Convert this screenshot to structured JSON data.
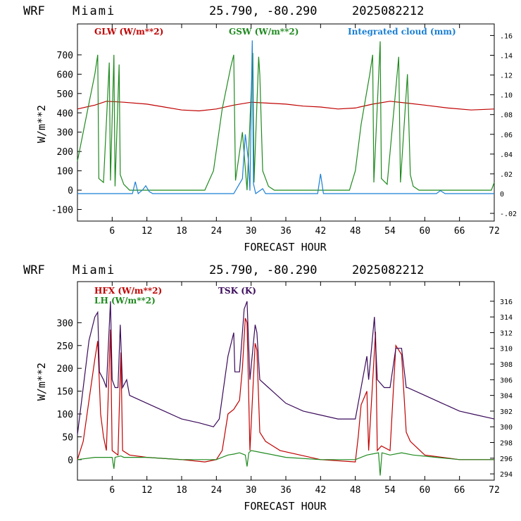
{
  "charts": [
    {
      "header": {
        "model": "WRF",
        "site": "Miami",
        "coords": "25.790, -80.290",
        "run": "2025082212"
      },
      "xlabel": "FORECAST HOUR",
      "ylabel": "W/m**2",
      "x_ticks": [
        "6",
        "12",
        "18",
        "24",
        "30",
        "36",
        "42",
        "48",
        "54",
        "60",
        "66",
        "72"
      ],
      "y_ticks": [
        "-100",
        "0",
        "100",
        "200",
        "300",
        "400",
        "500",
        "600",
        "700"
      ],
      "y2_ticks": [
        "-.02",
        "0",
        ".02",
        ".04",
        ".06",
        ".08",
        ".10",
        ".12",
        ".14",
        ".16"
      ],
      "legend": [
        {
          "label": "GLW (W/m**2)",
          "color": "#c00000"
        },
        {
          "label": "GSW (W/m**2)",
          "color": "#1f8a1f"
        },
        {
          "label": "Integrated cloud (mm)",
          "color": "#1a7fd4"
        }
      ]
    },
    {
      "header": {
        "model": "WRF",
        "site": "Miami",
        "coords": "25.790, -80.290",
        "run": "2025082212"
      },
      "xlabel": "FORECAST HOUR",
      "ylabel": "W/m**2",
      "x_ticks": [
        "6",
        "12",
        "18",
        "24",
        "30",
        "36",
        "42",
        "48",
        "54",
        "60",
        "66",
        "72"
      ],
      "y_ticks": [
        "0",
        "50",
        "100",
        "150",
        "200",
        "250",
        "300"
      ],
      "y2_ticks": [
        "294",
        "296",
        "298",
        "300",
        "302",
        "304",
        "306",
        "308",
        "310",
        "312",
        "314",
        "316"
      ],
      "legend": [
        {
          "label": "HFX (W/m**2)",
          "color": "#c00000"
        },
        {
          "label": "LH  (W/m**2)",
          "color": "#1f8a1f"
        },
        {
          "label": "TSK (K)",
          "color": "#3a0a5a"
        }
      ]
    }
  ],
  "chart_data": [
    {
      "type": "line",
      "xlim": [
        0,
        72
      ],
      "ylim": [
        -160,
        860
      ],
      "y2lim": [
        -0.0278,
        0.1717
      ],
      "series": [
        {
          "name": "GLW (W/m**2)",
          "color": "#c00000",
          "axis": "left",
          "points": [
            [
              0,
              420
            ],
            [
              3,
              440
            ],
            [
              5,
              460
            ],
            [
              8,
              455
            ],
            [
              12,
              445
            ],
            [
              15,
              430
            ],
            [
              18,
              415
            ],
            [
              21,
              410
            ],
            [
              24,
              420
            ],
            [
              27,
              440
            ],
            [
              30,
              455
            ],
            [
              33,
              450
            ],
            [
              36,
              445
            ],
            [
              39,
              435
            ],
            [
              42,
              430
            ],
            [
              45,
              420
            ],
            [
              48,
              425
            ],
            [
              51,
              445
            ],
            [
              54,
              460
            ],
            [
              57,
              450
            ],
            [
              60,
              440
            ],
            [
              64,
              425
            ],
            [
              68,
              415
            ],
            [
              72,
              420
            ]
          ]
        },
        {
          "name": "GSW (W/m**2)",
          "color": "#1f8a1f",
          "axis": "left",
          "points": [
            [
              0,
              150
            ],
            [
              1,
              300
            ],
            [
              2,
              450
            ],
            [
              3,
              600
            ],
            [
              3.5,
              700
            ],
            [
              3.7,
              60
            ],
            [
              4.5,
              40
            ],
            [
              5.5,
              660
            ],
            [
              5.7,
              50
            ],
            [
              6.3,
              700
            ],
            [
              6.5,
              20
            ],
            [
              7.2,
              650
            ],
            [
              7.4,
              80
            ],
            [
              8,
              30
            ],
            [
              9,
              0
            ],
            [
              22,
              0
            ],
            [
              23.5,
              100
            ],
            [
              25,
              420
            ],
            [
              26.5,
              640
            ],
            [
              27,
              700
            ],
            [
              27.3,
              50
            ],
            [
              28.5,
              300
            ],
            [
              29.3,
              0
            ],
            [
              30.3,
              710
            ],
            [
              30.5,
              40
            ],
            [
              31.3,
              690
            ],
            [
              31.5,
              600
            ],
            [
              32,
              100
            ],
            [
              33,
              20
            ],
            [
              34,
              0
            ],
            [
              47,
              0
            ],
            [
              48,
              100
            ],
            [
              49,
              340
            ],
            [
              50.5,
              600
            ],
            [
              51,
              700
            ],
            [
              51.2,
              40
            ],
            [
              52.3,
              770
            ],
            [
              52.5,
              60
            ],
            [
              53.5,
              30
            ],
            [
              55.5,
              690
            ],
            [
              55.8,
              40
            ],
            [
              57,
              600
            ],
            [
              57.5,
              80
            ],
            [
              58,
              20
            ],
            [
              59,
              0
            ],
            [
              71.5,
              0
            ],
            [
              72,
              40
            ]
          ]
        },
        {
          "name": "Integrated cloud (mm)",
          "color": "#1a7fd4",
          "axis": "right",
          "points": [
            [
              0,
              0
            ],
            [
              9.5,
              0
            ],
            [
              10,
              0.012
            ],
            [
              10.5,
              0
            ],
            [
              11.3,
              0.004
            ],
            [
              11.8,
              0.008
            ],
            [
              12.4,
              0.002
            ],
            [
              13,
              0
            ],
            [
              27,
              0
            ],
            [
              28.5,
              0.015
            ],
            [
              29,
              0.06
            ],
            [
              29.5,
              0.035
            ],
            [
              29.8,
              0.003
            ],
            [
              30.2,
              0.155
            ],
            [
              30.4,
              0.01
            ],
            [
              30.8,
              0
            ],
            [
              32,
              0.005
            ],
            [
              32.5,
              0
            ],
            [
              41.5,
              0
            ],
            [
              42,
              0.02
            ],
            [
              42.5,
              0
            ],
            [
              62,
              0
            ],
            [
              62.7,
              0.003
            ],
            [
              63.5,
              0
            ],
            [
              72,
              0
            ]
          ]
        }
      ]
    },
    {
      "type": "line",
      "xlim": [
        0,
        72
      ],
      "ylim": [
        -45,
        390
      ],
      "y2lim": [
        293.2,
        318.5
      ],
      "series": [
        {
          "name": "HFX (W/m**2)",
          "color": "#c00000",
          "axis": "left",
          "points": [
            [
              0,
              0
            ],
            [
              1,
              40
            ],
            [
              2,
              130
            ],
            [
              3,
              220
            ],
            [
              3.5,
              260
            ],
            [
              4,
              100
            ],
            [
              4.5,
              50
            ],
            [
              5,
              20
            ],
            [
              5.7,
              285
            ],
            [
              6,
              20
            ],
            [
              6.5,
              15
            ],
            [
              7,
              10
            ],
            [
              7.5,
              235
            ],
            [
              7.8,
              20
            ],
            [
              9,
              10
            ],
            [
              12,
              5
            ],
            [
              18,
              0
            ],
            [
              22,
              -5
            ],
            [
              24,
              0
            ],
            [
              25,
              20
            ],
            [
              26,
              100
            ],
            [
              27,
              110
            ],
            [
              27.5,
              120
            ],
            [
              28,
              130
            ],
            [
              28.5,
              200
            ],
            [
              29,
              310
            ],
            [
              29.3,
              300
            ],
            [
              29.8,
              20
            ],
            [
              30.7,
              255
            ],
            [
              31,
              240
            ],
            [
              31.5,
              60
            ],
            [
              32.5,
              40
            ],
            [
              35,
              20
            ],
            [
              42,
              0
            ],
            [
              48,
              -5
            ],
            [
              48.5,
              50
            ],
            [
              49,
              120
            ],
            [
              50,
              150
            ],
            [
              50.3,
              20
            ],
            [
              51.5,
              280
            ],
            [
              51.8,
              20
            ],
            [
              52.5,
              30
            ],
            [
              54,
              20
            ],
            [
              55,
              250
            ],
            [
              56,
              230
            ],
            [
              56.8,
              60
            ],
            [
              57.5,
              40
            ],
            [
              60,
              10
            ],
            [
              66,
              0
            ],
            [
              72,
              0
            ]
          ]
        },
        {
          "name": "LH  (W/m**2)",
          "color": "#1f8a1f",
          "axis": "left",
          "points": [
            [
              0,
              0
            ],
            [
              3,
              5
            ],
            [
              4,
              5
            ],
            [
              6,
              5
            ],
            [
              6.3,
              -20
            ],
            [
              6.5,
              5
            ],
            [
              7.5,
              8
            ],
            [
              8,
              5
            ],
            [
              12,
              5
            ],
            [
              18,
              0
            ],
            [
              24,
              0
            ],
            [
              26,
              10
            ],
            [
              27,
              12
            ],
            [
              28,
              15
            ],
            [
              29,
              10
            ],
            [
              29.3,
              -15
            ],
            [
              29.6,
              15
            ],
            [
              30,
              20
            ],
            [
              32,
              15
            ],
            [
              36,
              5
            ],
            [
              42,
              0
            ],
            [
              48,
              0
            ],
            [
              50,
              10
            ],
            [
              52,
              15
            ],
            [
              52.3,
              -35
            ],
            [
              52.6,
              15
            ],
            [
              54,
              10
            ],
            [
              56,
              15
            ],
            [
              58,
              10
            ],
            [
              62,
              5
            ],
            [
              66,
              0
            ],
            [
              72,
              0
            ]
          ]
        },
        {
          "name": "TSK (K)",
          "color": "#3a0a5a",
          "axis": "right",
          "points": [
            [
              0,
              299
            ],
            [
              1,
              305
            ],
            [
              2,
              311
            ],
            [
              3,
              314
            ],
            [
              3.5,
              314.6
            ],
            [
              3.8,
              307
            ],
            [
              4.5,
              306
            ],
            [
              5,
              305
            ],
            [
              5.7,
              316
            ],
            [
              6,
              306
            ],
            [
              6.5,
              305
            ],
            [
              7,
              305
            ],
            [
              7.4,
              313
            ],
            [
              7.8,
              305
            ],
            [
              8.5,
              306
            ],
            [
              9,
              304
            ],
            [
              12,
              303
            ],
            [
              15,
              302
            ],
            [
              18,
              301
            ],
            [
              21,
              300.5
            ],
            [
              23.5,
              300
            ],
            [
              24.5,
              301
            ],
            [
              26,
              309
            ],
            [
              27,
              312
            ],
            [
              27.2,
              307
            ],
            [
              28,
              307
            ],
            [
              28.8,
              315
            ],
            [
              29.3,
              316
            ],
            [
              29.8,
              306
            ],
            [
              30.7,
              313
            ],
            [
              31,
              312
            ],
            [
              31.5,
              306
            ],
            [
              33,
              305
            ],
            [
              36,
              303
            ],
            [
              39,
              302
            ],
            [
              42,
              301.5
            ],
            [
              45,
              301
            ],
            [
              48,
              301
            ],
            [
              49,
              305
            ],
            [
              50,
              309
            ],
            [
              50.3,
              306
            ],
            [
              51.3,
              314
            ],
            [
              51.8,
              306
            ],
            [
              53,
              305
            ],
            [
              54,
              305
            ],
            [
              55,
              310
            ],
            [
              56,
              310
            ],
            [
              56.8,
              305
            ],
            [
              57,
              305
            ],
            [
              60,
              304
            ],
            [
              63,
              303
            ],
            [
              66,
              302
            ],
            [
              69,
              301.5
            ],
            [
              72,
              301
            ]
          ]
        }
      ]
    }
  ]
}
